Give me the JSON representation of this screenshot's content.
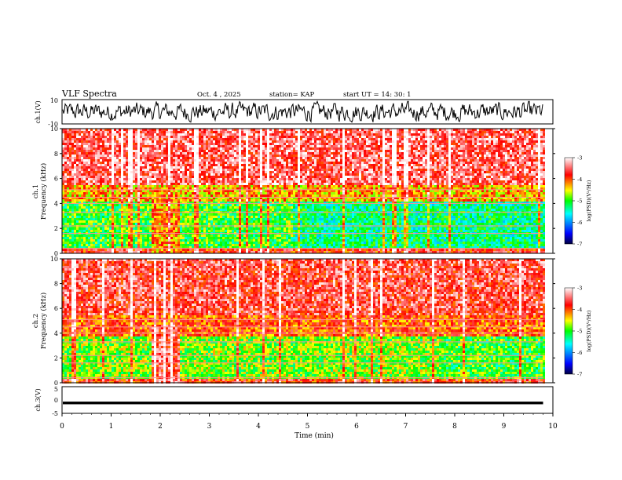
{
  "header": {
    "title": "VLF Spectra",
    "date": "Oct. 4  , 2025",
    "station": "station= KAP",
    "start_ut": "start  UT  =   14: 30: 1"
  },
  "chart_data": [
    {
      "type": "line",
      "name": "ch1-waveform",
      "ylabel": "ch.1(V)",
      "ylim": [
        -10,
        10
      ],
      "yticks": [
        "10",
        "-10"
      ],
      "x_range_min": [
        0,
        9.8
      ],
      "description_values": "dense noise waveform oscillating roughly between -8 and 8 V"
    },
    {
      "type": "heatmap",
      "name": "ch1-spectrogram",
      "ylabel_channel": "ch.1",
      "ylabel": "Frequency (kHz)",
      "ylim": [
        0,
        10
      ],
      "yticks": [
        "0",
        "2",
        "4",
        "6",
        "8",
        "10"
      ],
      "xlim": [
        0,
        9.8
      ],
      "dominant_log_psd": [
        {
          "band_khz": [
            5.5,
            10
          ],
          "value": -3.5
        },
        {
          "band_khz": [
            4.3,
            5.5
          ],
          "value": -4.3
        },
        {
          "band_khz": [
            0.5,
            4.3
          ],
          "value": -5.0
        },
        {
          "band_khz": [
            0,
            0.5
          ],
          "value": -3.8
        }
      ]
    },
    {
      "type": "heatmap",
      "name": "ch2-spectrogram",
      "ylabel_channel": "ch.2",
      "ylabel": "Frequency (kHz)",
      "ylim": [
        0,
        10
      ],
      "yticks": [
        "0",
        "2",
        "4",
        "6",
        "8",
        "10"
      ],
      "xlim": [
        0,
        9.8
      ],
      "dominant_log_psd": [
        {
          "band_khz": [
            5.5,
            10
          ],
          "value": -3.6
        },
        {
          "band_khz": [
            3.8,
            5.5
          ],
          "value": -4.0
        },
        {
          "band_khz": [
            0.5,
            3.8
          ],
          "value": -4.8
        },
        {
          "band_khz": [
            0,
            0.5
          ],
          "value": -3.8
        }
      ]
    },
    {
      "type": "line",
      "name": "ch3-waveform",
      "ylabel": "ch.3(V)",
      "ylim": [
        -5,
        5
      ],
      "yticks": [
        "5",
        "0",
        "-5"
      ],
      "xlabel": "Time  (min)",
      "xlim": [
        0,
        10
      ],
      "xticks": [
        "0",
        "1",
        "2",
        "3",
        "4",
        "5",
        "6",
        "7",
        "8",
        "9",
        "10"
      ],
      "description_values": "nearly flat trace around -1 V with very small amplitude"
    }
  ],
  "colorbar": {
    "label": "log(PSD)(V²/Hz)",
    "ticks": [
      "-3",
      "-4",
      "-5",
      "-6",
      "-7"
    ],
    "range": [
      -7,
      -3
    ],
    "colors": [
      "#000040",
      "#0000ff",
      "#00ffff",
      "#00ff00",
      "#ffff00",
      "#ff0000",
      "#ffffff"
    ]
  }
}
